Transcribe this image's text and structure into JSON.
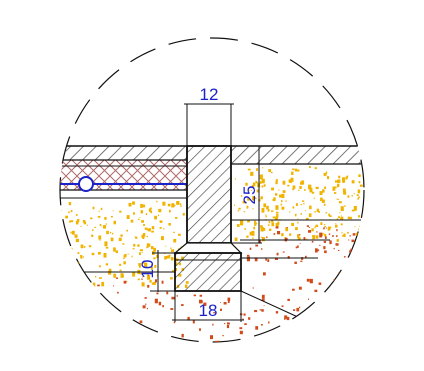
{
  "drawing": {
    "dimensions": {
      "top_width": "12",
      "wall_height": "25",
      "footing_height": "10",
      "footing_width": "18"
    },
    "colors": {
      "line": "#111111",
      "dimension_text": "#1a22c8",
      "pipe": "#1a22c8",
      "insulation_hatch": "#b06a6a",
      "sand_dots": "#f0b400",
      "soil_dots": "#d04a1a"
    },
    "symbols": {
      "pipe_marker": "circle"
    }
  }
}
